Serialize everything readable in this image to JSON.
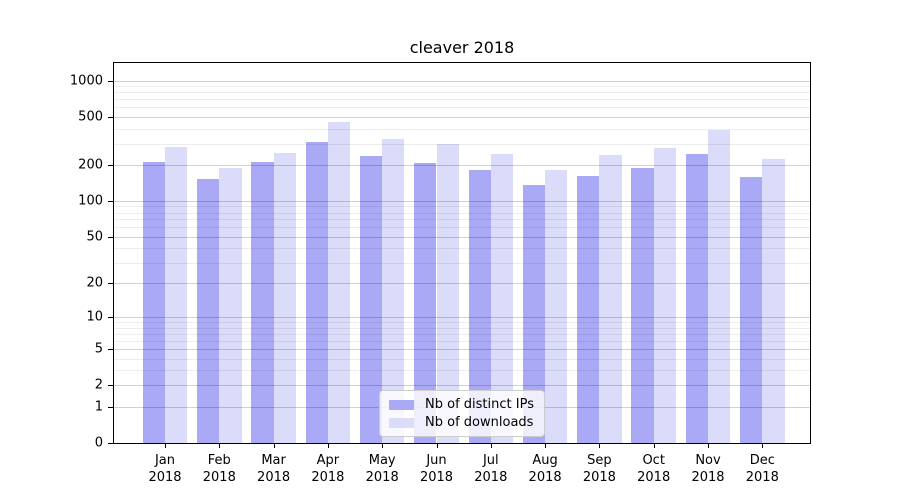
{
  "chart_data": {
    "type": "bar",
    "title": "cleaver 2018",
    "categories": [
      "Jan 2018",
      "Feb 2018",
      "Mar 2018",
      "Apr 2018",
      "May 2018",
      "Jun 2018",
      "Jul 2018",
      "Aug 2018",
      "Sep 2018",
      "Oct 2018",
      "Nov 2018",
      "Dec 2018"
    ],
    "series": [
      {
        "name": "Nb of distinct IPs",
        "color": "#a9a9f6",
        "values": [
          213,
          154,
          213,
          311,
          237,
          207,
          182,
          137,
          161,
          188,
          245,
          159
        ]
      },
      {
        "name": "Nb of downloads",
        "color": "#dbdbfa",
        "values": [
          281,
          189,
          250,
          454,
          326,
          300,
          245,
          182,
          243,
          276,
          388,
          225
        ]
      }
    ],
    "xlabel": "",
    "ylabel": "",
    "yscale": "log10(value + 1)",
    "ylim": [
      0,
      1400
    ],
    "y_ticks": [
      0,
      1,
      2,
      5,
      10,
      20,
      50,
      100,
      200,
      500,
      1000
    ],
    "y_minor_gridlines": [
      3,
      4,
      6,
      7,
      8,
      9,
      30,
      40,
      60,
      70,
      80,
      90,
      300,
      400,
      600,
      700,
      800,
      900
    ],
    "grid": true,
    "legend_position": "lower center"
  }
}
